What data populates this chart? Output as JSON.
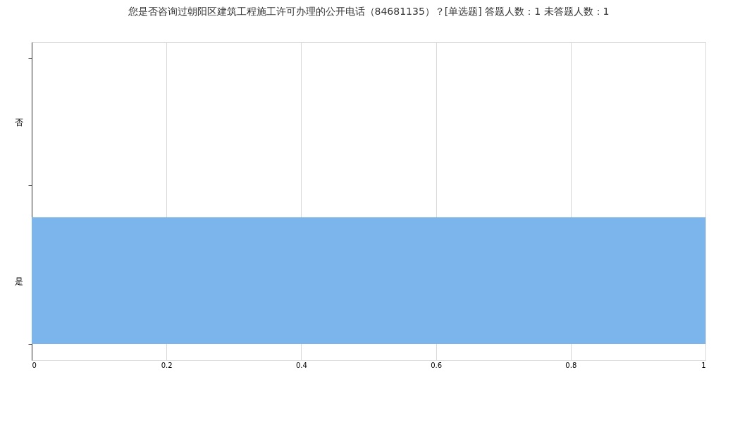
{
  "chart_data": {
    "type": "bar",
    "orientation": "horizontal",
    "title": "您是否咨询过朝阳区建筑工程施工许可办理的公开电话（84681135）？[单选题]  答题人数：1  未答题人数：1",
    "categories": [
      "否",
      "是"
    ],
    "values": [
      0,
      1
    ],
    "color": "#7cb5ec",
    "xlim": [
      0,
      1
    ],
    "xticks": [
      0,
      0.2,
      0.4,
      0.6,
      0.8,
      1
    ],
    "grid": "x"
  }
}
